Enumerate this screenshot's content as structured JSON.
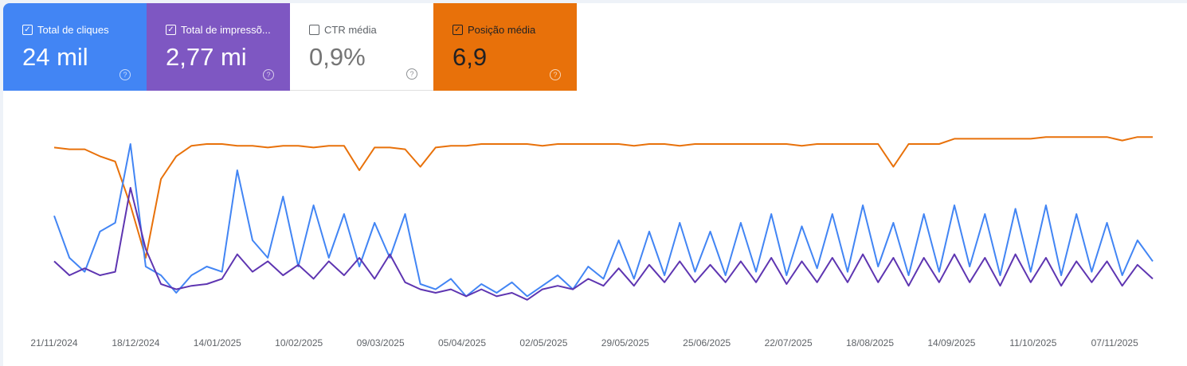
{
  "metrics": [
    {
      "label": "Total de cliques",
      "value": "24 mil",
      "checked": true,
      "color": "#4285f4"
    },
    {
      "label": "Total de impressõ...",
      "value": "2,77 mi",
      "checked": true,
      "color": "#7e57c2"
    },
    {
      "label": "CTR média",
      "value": "0,9%",
      "checked": false,
      "color": "#ffffff"
    },
    {
      "label": "Posição média",
      "value": "6,9",
      "checked": true,
      "color": "#e8710a"
    }
  ],
  "icons": {
    "checked": "checkbox-checked-icon",
    "unchecked": "checkbox-empty-icon",
    "help": "help-circle-icon"
  },
  "chart_data": {
    "type": "line",
    "title": "",
    "xlabel": "",
    "ylabel": "",
    "y_axis_visible": false,
    "grid": false,
    "note_values": "relative height 0-100 (no y axis printed)",
    "x_ticks": [
      "21/11/2024",
      "18/12/2024",
      "14/01/2025",
      "10/02/2025",
      "09/03/2025",
      "05/04/2025",
      "02/05/2025",
      "29/05/2025",
      "25/06/2025",
      "22/07/2025",
      "18/08/2025",
      "14/09/2025",
      "11/10/2025",
      "07/11/2025"
    ],
    "series": [
      {
        "key": "position",
        "color": "#e8710a",
        "values": [
          93,
          92,
          92,
          88,
          85,
          60,
          30,
          75,
          88,
          94,
          95,
          95,
          94,
          94,
          93,
          94,
          94,
          93,
          94,
          94,
          80,
          93,
          93,
          92,
          82,
          93,
          94,
          94,
          95,
          95,
          95,
          95,
          94,
          95,
          95,
          95,
          95,
          95,
          94,
          95,
          95,
          94,
          95,
          95,
          95,
          95,
          95,
          95,
          95,
          94,
          95,
          95,
          95,
          95,
          95,
          82,
          95,
          95,
          95,
          98,
          98,
          98,
          98,
          98,
          98,
          99,
          99,
          99,
          99,
          99,
          97,
          99,
          99
        ]
      },
      {
        "key": "clicks",
        "color": "#4285f4",
        "values": [
          54,
          30,
          22,
          45,
          50,
          95,
          25,
          20,
          10,
          20,
          25,
          22,
          80,
          40,
          30,
          65,
          25,
          60,
          30,
          55,
          25,
          50,
          30,
          55,
          15,
          12,
          18,
          8,
          15,
          10,
          16,
          8,
          14,
          20,
          12,
          25,
          18,
          40,
          18,
          45,
          20,
          50,
          22,
          45,
          20,
          50,
          22,
          55,
          20,
          48,
          24,
          55,
          22,
          60,
          25,
          50,
          20,
          55,
          22,
          60,
          25,
          55,
          20,
          58,
          22,
          60,
          20,
          55,
          22,
          50,
          20,
          40,
          28
        ]
      },
      {
        "key": "impressions",
        "color": "#5e35b1",
        "values": [
          28,
          20,
          24,
          20,
          22,
          70,
          35,
          15,
          12,
          14,
          15,
          18,
          32,
          22,
          28,
          20,
          26,
          18,
          28,
          20,
          30,
          18,
          32,
          16,
          12,
          10,
          12,
          8,
          12,
          8,
          10,
          6,
          12,
          14,
          12,
          18,
          14,
          24,
          14,
          26,
          16,
          28,
          16,
          26,
          16,
          28,
          16,
          30,
          15,
          28,
          16,
          30,
          16,
          32,
          16,
          30,
          14,
          30,
          16,
          32,
          16,
          30,
          14,
          32,
          16,
          30,
          14,
          28,
          16,
          28,
          14,
          26,
          18
        ]
      }
    ]
  }
}
